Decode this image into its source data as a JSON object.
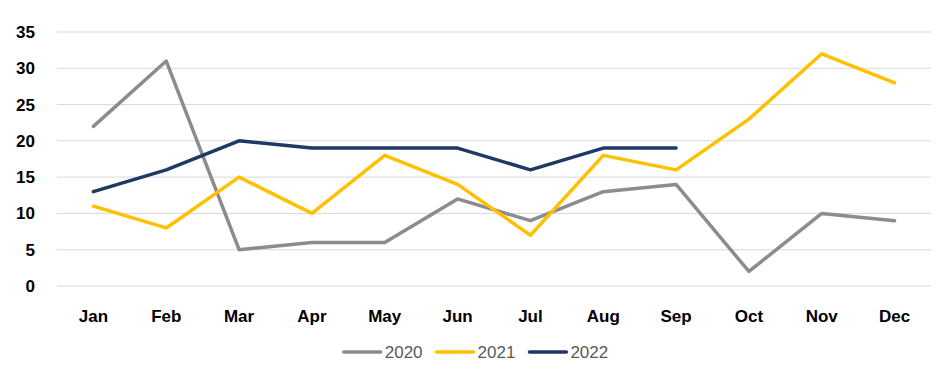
{
  "chart_data": {
    "type": "line",
    "categories": [
      "Jan",
      "Feb",
      "Mar",
      "Apr",
      "May",
      "Jun",
      "Jul",
      "Aug",
      "Sep",
      "Oct",
      "Nov",
      "Dec"
    ],
    "series": [
      {
        "name": "2020",
        "color": "#8c8c8c",
        "values": [
          22,
          31,
          5,
          6,
          6,
          12,
          9,
          13,
          14,
          2,
          10,
          9
        ]
      },
      {
        "name": "2021",
        "color": "#ffc000",
        "values": [
          11,
          8,
          15,
          10,
          18,
          14,
          7,
          18,
          16,
          23,
          32,
          28
        ]
      },
      {
        "name": "2022",
        "color": "#1f3864",
        "values": [
          13,
          16,
          20,
          19,
          19,
          19,
          16,
          19,
          19,
          null,
          null,
          null
        ]
      }
    ],
    "ylim": [
      0,
      35
    ],
    "yticks": [
      0,
      5,
      10,
      15,
      20,
      25,
      30,
      35
    ],
    "grid": true,
    "legend": "bottom"
  }
}
